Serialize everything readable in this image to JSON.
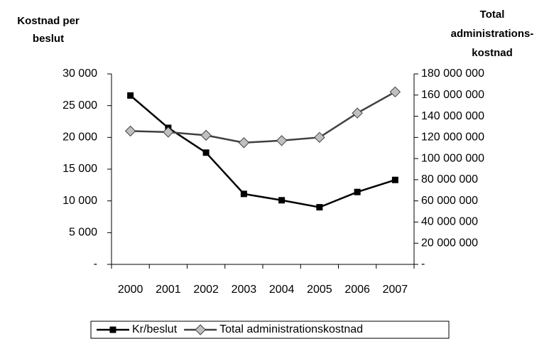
{
  "chart_data": {
    "type": "line",
    "ylabel": [
      "Kostnad per",
      "beslut"
    ],
    "y2label": [
      "Total",
      "administrations-",
      "kostnad"
    ],
    "categories": [
      "2000",
      "2001",
      "2002",
      "2003",
      "2004",
      "2005",
      "2006",
      "2007"
    ],
    "series": [
      {
        "name": "Kr/beslut",
        "color": "#000000",
        "marker": "square",
        "values": [
          26600,
          21500,
          17600,
          11100,
          10100,
          9000,
          11400,
          13300
        ]
      },
      {
        "name": "Total administrationskostnad",
        "color": "#404040",
        "marker": "diamond",
        "marker_color": "#c0c0c0",
        "axis": "y2",
        "values": [
          126000000,
          125000000,
          122000000,
          115000000,
          117000000,
          120000000,
          143000000,
          163000000
        ]
      }
    ],
    "ylim": [
      0,
      30000
    ],
    "yticks": [
      {
        "value": 0,
        "label": "-"
      },
      {
        "value": 5000,
        "label": "5 000"
      },
      {
        "value": 10000,
        "label": "10 000"
      },
      {
        "value": 15000,
        "label": "15 000"
      },
      {
        "value": 20000,
        "label": "20 000"
      },
      {
        "value": 25000,
        "label": "25 000"
      },
      {
        "value": 30000,
        "label": "30 000"
      }
    ],
    "y2lim": [
      0,
      180000000
    ],
    "y2ticks": [
      {
        "value": 0,
        "label": "-"
      },
      {
        "value": 20000000,
        "label": "20 000 000"
      },
      {
        "value": 40000000,
        "label": "40 000 000"
      },
      {
        "value": 60000000,
        "label": "60 000 000"
      },
      {
        "value": 80000000,
        "label": "80 000 000"
      },
      {
        "value": 100000000,
        "label": "100 000 000"
      },
      {
        "value": 120000000,
        "label": "120 000 000"
      },
      {
        "value": 140000000,
        "label": "140 000 000"
      },
      {
        "value": 160000000,
        "label": "160 000 000"
      },
      {
        "value": 180000000,
        "label": "180 000 000"
      }
    ],
    "legend": "bottom",
    "grid": false
  }
}
